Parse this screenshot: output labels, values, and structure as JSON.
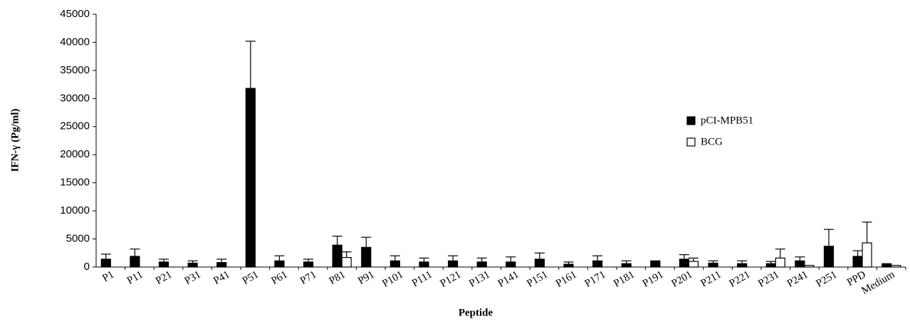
{
  "chart_data": {
    "type": "bar",
    "y_label": "IFN-γ (Pg/ml)",
    "x_label": "Peptide",
    "categories": [
      "P1",
      "P11",
      "P21",
      "P31",
      "P41",
      "P51",
      "P61",
      "P71",
      "P81",
      "P91",
      "P101",
      "P111",
      "P121",
      "P131",
      "P141",
      "P151",
      "P161",
      "P171",
      "P181",
      "P191",
      "P201",
      "P211",
      "P221",
      "P231",
      "P241",
      "P251",
      "PPD",
      "Medium"
    ],
    "series": [
      {
        "name": "pCI-MPB51",
        "color": "#000000",
        "values": [
          1400,
          1900,
          900,
          700,
          800,
          31800,
          1100,
          900,
          3900,
          3500,
          1100,
          900,
          1100,
          900,
          900,
          1400,
          500,
          1100,
          600,
          1000,
          1400,
          700,
          600,
          600,
          1100,
          3700,
          1900,
          500
        ],
        "errors": [
          900,
          1300,
          500,
          400,
          600,
          8400,
          900,
          500,
          1600,
          1800,
          900,
          700,
          900,
          700,
          900,
          1100,
          400,
          900,
          500,
          100,
          800,
          400,
          500,
          400,
          700,
          3000,
          1000,
          100
        ]
      },
      {
        "name": "BCG",
        "color": "#ffffff",
        "values": [
          0,
          0,
          0,
          0,
          0,
          0,
          0,
          0,
          1700,
          0,
          0,
          0,
          0,
          0,
          0,
          0,
          0,
          0,
          0,
          0,
          1000,
          0,
          0,
          1600,
          300,
          0,
          4300,
          300
        ],
        "errors": [
          null,
          null,
          null,
          null,
          null,
          null,
          null,
          null,
          1000,
          null,
          null,
          null,
          null,
          null,
          null,
          null,
          null,
          null,
          null,
          null,
          600,
          null,
          null,
          1600,
          null,
          null,
          3700,
          null
        ]
      }
    ],
    "ylim": [
      0,
      45000
    ],
    "yticks": [
      0,
      5000,
      10000,
      15000,
      20000,
      25000,
      30000,
      35000,
      40000,
      45000
    ],
    "grid": false
  }
}
